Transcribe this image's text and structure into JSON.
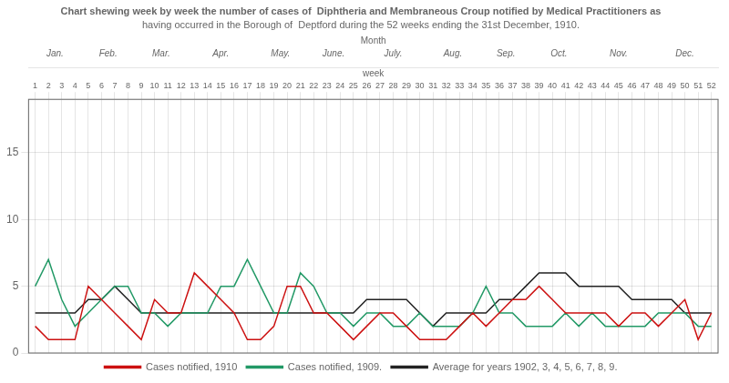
{
  "chart_data": {
    "type": "line",
    "title": "Chart shewing week by week the number of cases of  Diphtheria and Membraneous Croup notified by Medical Practitioners as",
    "subtitle": "having occurred in the Borough of  Deptford during the 52 weeks ending the 31st December, 1910.",
    "xlabel": "week",
    "x2label": "Month",
    "x": [
      1,
      2,
      3,
      4,
      5,
      6,
      7,
      8,
      9,
      10,
      11,
      12,
      13,
      14,
      15,
      16,
      17,
      18,
      19,
      20,
      21,
      22,
      23,
      24,
      25,
      26,
      27,
      28,
      29,
      30,
      31,
      32,
      33,
      34,
      35,
      36,
      37,
      38,
      39,
      40,
      41,
      42,
      43,
      44,
      45,
      46,
      47,
      48,
      49,
      50,
      51,
      52
    ],
    "xlim": [
      0.5,
      52.5
    ],
    "xticks": [
      1,
      2,
      3,
      4,
      5,
      6,
      7,
      8,
      9,
      10,
      11,
      12,
      13,
      14,
      15,
      16,
      17,
      18,
      19,
      20,
      21,
      22,
      23,
      24,
      25,
      26,
      27,
      28,
      29,
      30,
      31,
      32,
      33,
      34,
      35,
      36,
      37,
      38,
      39,
      40,
      41,
      42,
      43,
      44,
      45,
      46,
      47,
      48,
      49,
      50,
      51,
      52
    ],
    "annotations": [
      {
        "text": "Jan.",
        "x_start": 1,
        "x_end": 4
      },
      {
        "text": "Feb.",
        "x_start": 5,
        "x_end": 8
      },
      {
        "text": "Mar.",
        "x_start": 9,
        "x_end": 12
      },
      {
        "text": "Apr.",
        "x_start": 13,
        "x_end": 17
      },
      {
        "text": "May.",
        "x_start": 18,
        "x_end": 21
      },
      {
        "text": "June.",
        "x_start": 22,
        "x_end": 25
      },
      {
        "text": "July.",
        "x_start": 26,
        "x_end": 30
      },
      {
        "text": "Aug.",
        "x_start": 31,
        "x_end": 34
      },
      {
        "text": "Sep.",
        "x_start": 35,
        "x_end": 38
      },
      {
        "text": "Oct.",
        "x_start": 39,
        "x_end": 42
      },
      {
        "text": "Nov.",
        "x_start": 43,
        "x_end": 47
      },
      {
        "text": "Dec.",
        "x_start": 48,
        "x_end": 52
      }
    ],
    "series": [
      {
        "name": "Cases notified, 1910",
        "color": "#cc1111",
        "values": [
          2,
          1,
          1,
          1,
          5,
          4,
          3,
          2,
          1,
          4,
          3,
          3,
          6,
          5,
          4,
          3,
          1,
          1,
          2,
          5,
          5,
          3,
          3,
          2,
          1,
          2,
          3,
          3,
          2,
          1,
          1,
          1,
          2,
          3,
          2,
          3,
          4,
          4,
          5,
          4,
          3,
          3,
          3,
          3,
          2,
          3,
          3,
          2,
          3,
          4,
          1,
          3
        ]
      },
      {
        "name": "Cases notified, 1909.",
        "color": "#229966",
        "values": [
          5,
          7,
          4,
          2,
          3,
          4,
          5,
          5,
          3,
          3,
          2,
          3,
          3,
          3,
          5,
          5,
          7,
          5,
          3,
          3,
          6,
          5,
          3,
          3,
          2,
          3,
          3,
          2,
          2,
          3,
          2,
          2,
          2,
          3,
          5,
          3,
          3,
          2,
          2,
          2,
          3,
          2,
          3,
          2,
          2,
          2,
          2,
          3,
          3,
          3,
          2,
          2
        ]
      },
      {
        "name": "Average for years 1902, 3, 4, 5, 6, 7, 8, 9.",
        "color": "#222222",
        "values": [
          3,
          3,
          3,
          3,
          4,
          4,
          5,
          4,
          3,
          3,
          3,
          3,
          3,
          3,
          3,
          3,
          3,
          3,
          3,
          3,
          3,
          3,
          3,
          3,
          3,
          4,
          4,
          4,
          4,
          3,
          2,
          3,
          3,
          3,
          3,
          4,
          4,
          5,
          6,
          6,
          6,
          5,
          5,
          5,
          5,
          4,
          4,
          4,
          4,
          3,
          3,
          3
        ]
      }
    ],
    "ylim": [
      0,
      19
    ],
    "yticks": [
      0,
      5,
      10,
      15
    ],
    "grid": true,
    "legend": "bottom"
  }
}
